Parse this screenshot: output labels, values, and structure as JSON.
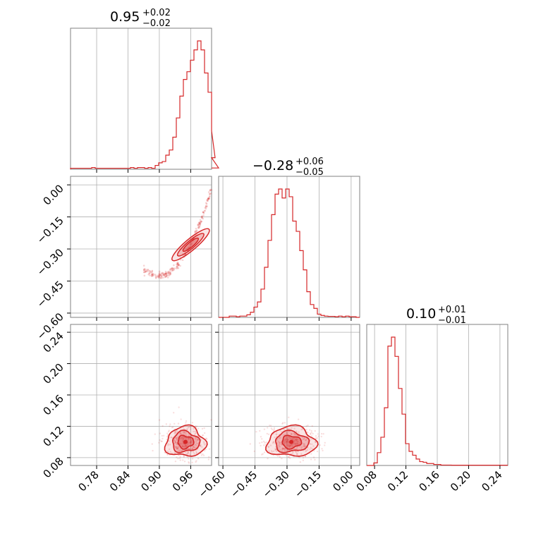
{
  "chart_data": {
    "type": "corner",
    "color": "#d62728",
    "parameters": [
      {
        "id": "p0",
        "title": {
          "median": "0.95",
          "plus": "+0.02",
          "minus": "−0.02"
        },
        "range": [
          0.73,
          1.0
        ],
        "ticks": [
          0.78,
          0.84,
          0.9,
          0.96
        ],
        "tick_labels": [
          "0.78",
          "0.84",
          "0.90",
          "0.96"
        ],
        "histogram": {
          "edges_start": 0.73,
          "bin_width": 0.00675,
          "counts": [
            0.008,
            0.008,
            0.008,
            0.008,
            0.008,
            0.008,
            0.013,
            0.008,
            0.008,
            0.008,
            0.008,
            0.008,
            0.008,
            0.008,
            0.008,
            0.008,
            0.008,
            0.013,
            0.008,
            0.013,
            0.013,
            0.008,
            0.013,
            0.008,
            0.03,
            0.05,
            0.06,
            0.11,
            0.15,
            0.25,
            0.4,
            0.57,
            0.7,
            0.76,
            0.85,
            0.93,
            1.0,
            0.93,
            0.75,
            0.6,
            0.3,
            0.09,
            0.01
          ]
        }
      },
      {
        "id": "p1",
        "title": {
          "median": "−0.28",
          "plus": "+0.06",
          "minus": "−0.05"
        },
        "range": [
          -0.62,
          0.04
        ],
        "ticks": [
          0.0,
          -0.15,
          -0.3,
          -0.45,
          -0.6
        ],
        "tick_labels": [
          "0.00",
          "−0.15",
          "−0.30",
          "−0.45",
          "−0.60"
        ],
        "histogram": {
          "edges_start": -0.62,
          "bin_width": 0.0165,
          "counts": [
            0,
            0,
            0,
            0.01,
            0.01,
            0.005,
            0.01,
            0.01,
            0.02,
            0.04,
            0.08,
            0.12,
            0.22,
            0.39,
            0.6,
            0.8,
            0.96,
            1.0,
            0.93,
            1.0,
            0.94,
            0.75,
            0.67,
            0.52,
            0.37,
            0.2,
            0.1,
            0.07,
            0.025,
            0.015,
            0.01,
            0.008,
            0.008,
            0.005,
            0.01,
            0.005,
            0.01,
            0.005,
            0.005,
            0
          ]
        }
      },
      {
        "id": "p2",
        "title": {
          "median": "0.10",
          "plus": "+0.01",
          "minus": "−0.01"
        },
        "range": [
          0.07,
          0.25
        ],
        "ticks": [
          0.08,
          0.12,
          0.16,
          0.2,
          0.24
        ],
        "tick_labels": [
          "0.08",
          "0.12",
          "0.16",
          "0.20",
          "0.24"
        ],
        "histogram": {
          "edges_start": 0.07,
          "bin_width": 0.0045,
          "counts": [
            0,
            0,
            0.02,
            0.1,
            0.22,
            0.45,
            0.93,
            1.0,
            0.85,
            0.6,
            0.4,
            0.17,
            0.11,
            0.08,
            0.05,
            0.03,
            0.025,
            0.015,
            0.015,
            0.008,
            0.008,
            0.003,
            0.003,
            0.003,
            0.002,
            0.002,
            0.002,
            0.002,
            0.002,
            0.002,
            0.002,
            0.002,
            0.002,
            0.002,
            0.002,
            0.002,
            0.002,
            0.002,
            0.002,
            0.002
          ]
        }
      }
    ],
    "joint": [
      {
        "x": "p0",
        "y": "p1",
        "center": [
          0.955,
          -0.3
        ],
        "spread": [
          0.02,
          0.05
        ],
        "note": "banana-shaped correlated band from (0.87,-0.48) to (1.0,-0.12)"
      },
      {
        "x": "p0",
        "y": "p2",
        "center": [
          0.95,
          0.1
        ],
        "spread": [
          0.02,
          0.01
        ]
      },
      {
        "x": "p1",
        "y": "p2",
        "center": [
          -0.28,
          0.1
        ],
        "spread": [
          0.06,
          0.01
        ]
      }
    ]
  }
}
